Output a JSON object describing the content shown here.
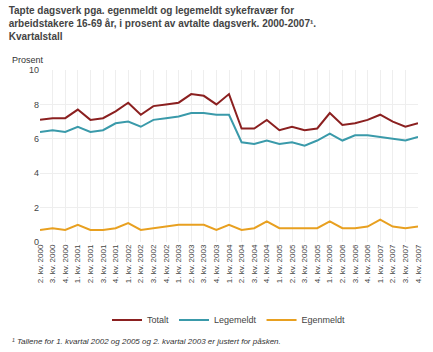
{
  "chart_data": {
    "type": "line",
    "title": "Tapte dagsverk pga. egenmeldt og legemeldt sykefravær for\narbeidstakere 16-69 år, i prosent av avtalte dagsverk. 2000-2007¹.\nKvartalstall",
    "ylabel": "Prosent",
    "annotations": [
      "¹ Tallene for 1. kvartal 2002 og 2005 og 2. kvartal 2003 er justert for påsken."
    ],
    "categories": [
      "2. kv. 2000",
      "3. kv. 2000",
      "4. kv. 2000",
      "1. kv. 2001",
      "2. kv. 2001",
      "3. kv. 2001",
      "4. kv. 2001",
      "1. kv. 2002",
      "2. kv. 2002",
      "3. kv. 2002",
      "4. kv. 2002",
      "1. kv. 2003",
      "2. kv. 2003",
      "3. kv. 2003",
      "4. kv. 2003",
      "1. kv. 2004",
      "2. kv. 2004",
      "3. kv. 2004",
      "4. kv. 2004",
      "1. kv. 2005",
      "2. kv. 2005",
      "3. kv. 2005",
      "4. kv. 2005",
      "1. kv. 2006",
      "2. kv. 2006",
      "3. kv. 2006",
      "4. kv. 2006",
      "1. kv. 2007",
      "2. kv. 2007",
      "3. kv. 2007",
      "4. kv. 2007"
    ],
    "series": [
      {
        "name": "Totalt",
        "color": "#8b2020",
        "values": [
          7.1,
          7.2,
          7.2,
          7.7,
          7.1,
          7.2,
          7.6,
          8.1,
          7.4,
          7.9,
          8.0,
          8.1,
          8.6,
          8.5,
          8.0,
          8.6,
          6.6,
          6.6,
          7.1,
          6.5,
          6.7,
          6.5,
          6.6,
          7.5,
          6.8,
          6.9,
          7.1,
          7.4,
          7.0,
          6.7,
          6.9
        ]
      },
      {
        "name": "Legemeldt",
        "color": "#3a9aaa",
        "values": [
          6.4,
          6.5,
          6.4,
          6.7,
          6.4,
          6.5,
          6.9,
          7.0,
          6.7,
          7.1,
          7.2,
          7.3,
          7.5,
          7.5,
          7.4,
          7.4,
          5.8,
          5.7,
          5.9,
          5.7,
          5.8,
          5.6,
          5.9,
          6.3,
          5.9,
          6.2,
          6.2,
          6.1,
          6.0,
          5.9,
          6.1
        ]
      },
      {
        "name": "Egenmeldt",
        "color": "#e8a020",
        "values": [
          0.7,
          0.8,
          0.7,
          1.0,
          0.7,
          0.7,
          0.8,
          1.1,
          0.7,
          0.8,
          0.9,
          1.0,
          1.0,
          1.0,
          0.7,
          1.0,
          0.7,
          0.8,
          1.2,
          0.8,
          0.8,
          0.8,
          0.8,
          1.2,
          0.8,
          0.8,
          0.9,
          1.3,
          0.9,
          0.8,
          0.9
        ]
      }
    ],
    "ylim": [
      0,
      10
    ],
    "yticks": [
      0,
      2,
      4,
      6,
      8,
      10
    ],
    "grid": true,
    "legend": "bottom"
  }
}
